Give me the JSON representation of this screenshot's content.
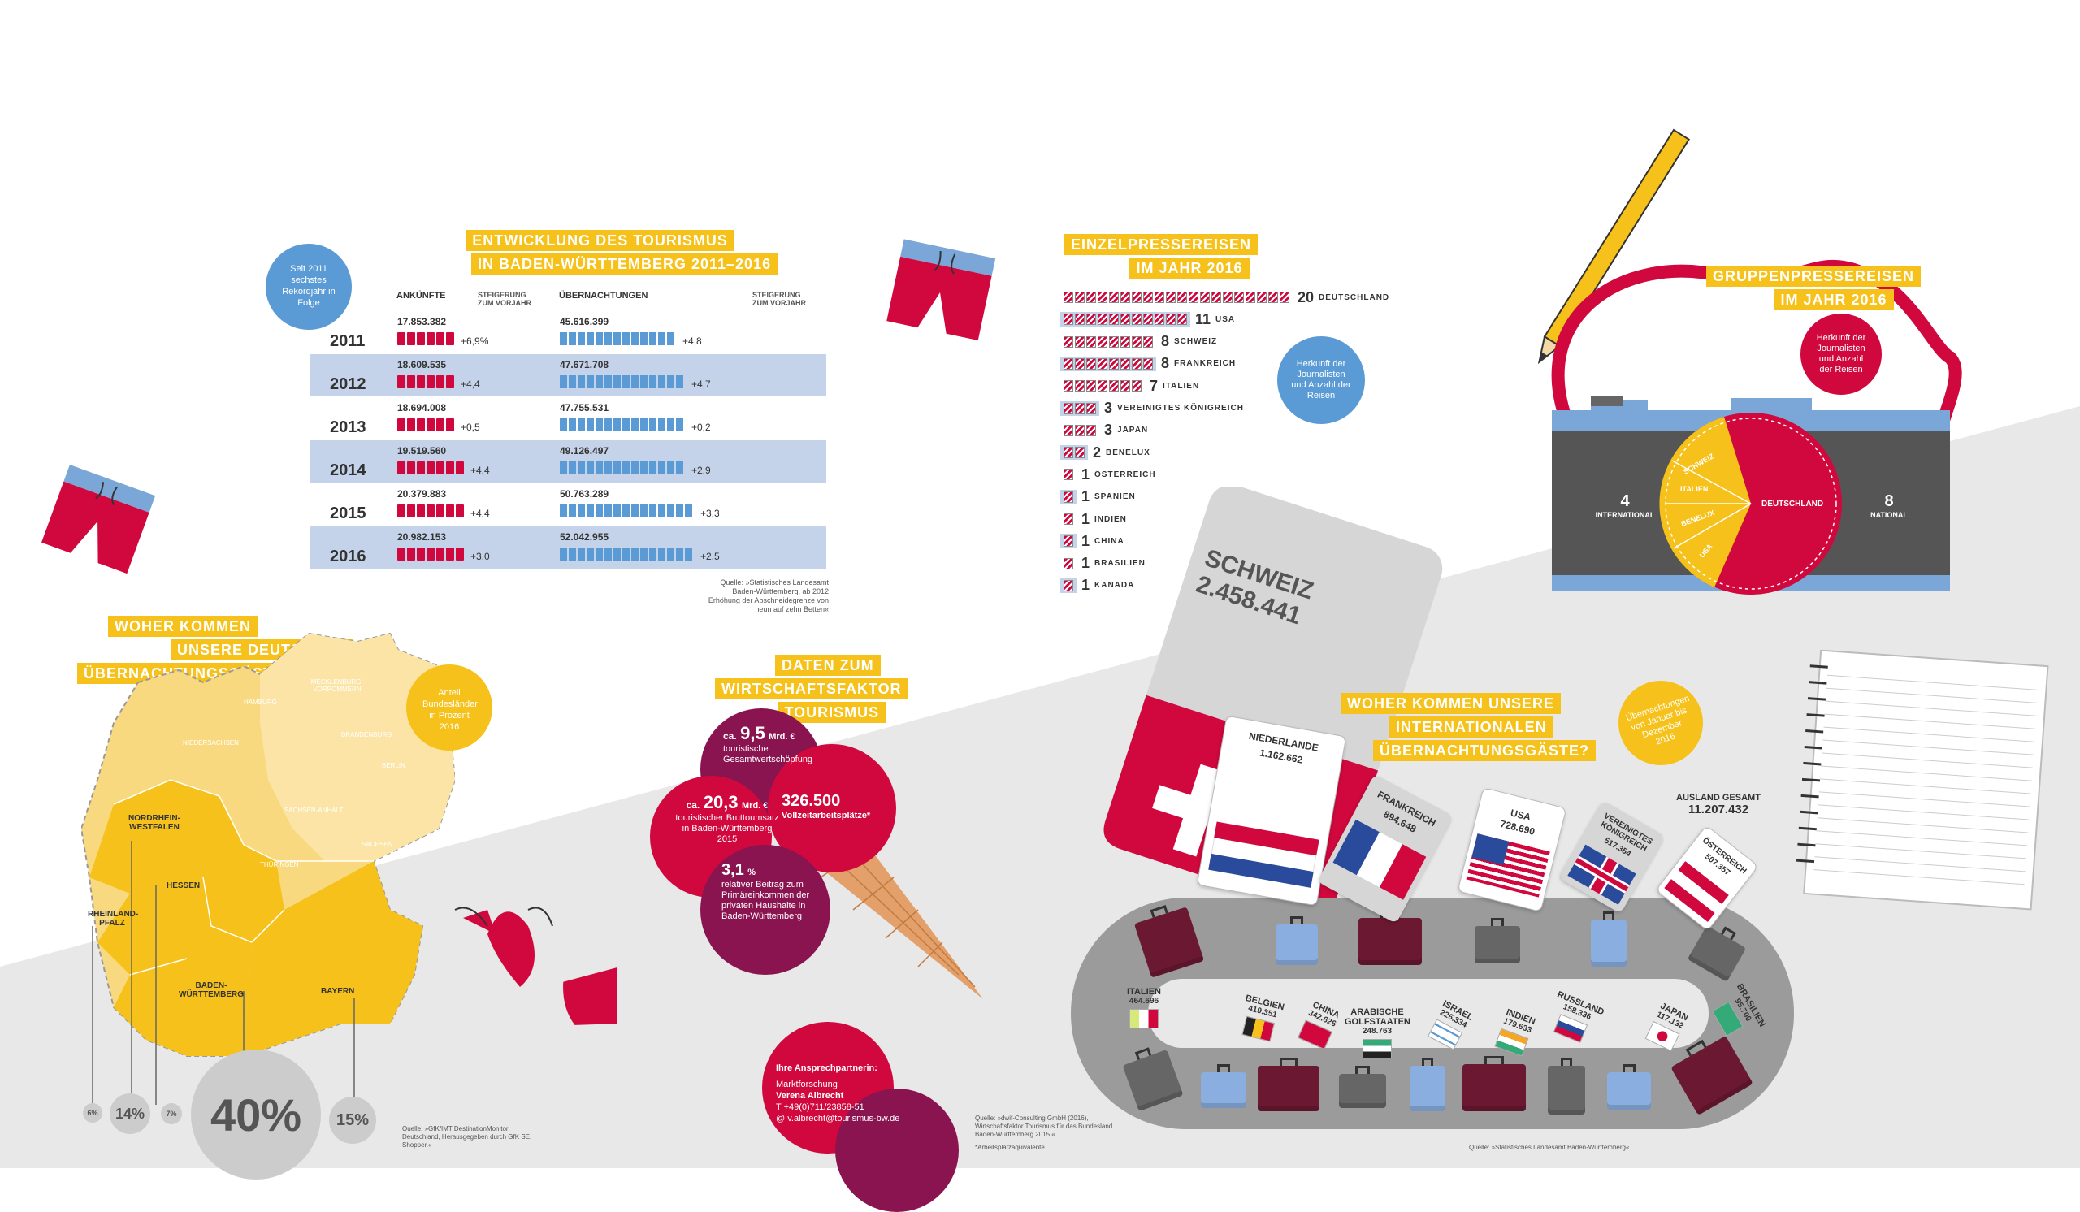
{
  "tourism": {
    "title1": "ENTWICKLUNG DES TOURISMUS",
    "title2": "IN BADEN-WÜRTTEMBERG 2011–2016",
    "record_badge": "Seit 2011 sechstes Rekordjahr in Folge",
    "col_arrivals": "ANKÜNFTE",
    "col_increase": "STEIGERUNG ZUM VORJAHR",
    "col_overnight": "ÜBERNACHTUNGEN",
    "col_increase2": "STEIGERUNG ZUM VORJAHR",
    "rows": [
      {
        "year": "2011",
        "arrivals": "17.853.382",
        "a_pct": "+6,9%",
        "nights": "45.616.399",
        "n_pct": "+4,8",
        "a_val": 17853382,
        "n_val": 45616399
      },
      {
        "year": "2012",
        "arrivals": "18.609.535",
        "a_pct": "+4,4",
        "nights": "47.671.708",
        "n_pct": "+4,7",
        "a_val": 18609535,
        "n_val": 47671708
      },
      {
        "year": "2013",
        "arrivals": "18.694.008",
        "a_pct": "+0,5",
        "nights": "47.755.531",
        "n_pct": "+0,2",
        "a_val": 18694008,
        "n_val": 47755531
      },
      {
        "year": "2014",
        "arrivals": "19.519.560",
        "a_pct": "+4,4",
        "nights": "49.126.497",
        "n_pct": "+2,9",
        "a_val": 19519560,
        "n_val": 49126497
      },
      {
        "year": "2015",
        "arrivals": "20.379.883",
        "a_pct": "+4,4",
        "nights": "50.763.289",
        "n_pct": "+3,3",
        "a_val": 20379883,
        "n_val": 50763289
      },
      {
        "year": "2016",
        "arrivals": "20.982.153",
        "a_pct": "+3,0",
        "nights": "52.042.955",
        "n_pct": "+2,5",
        "a_val": 20982153,
        "n_val": 52042955
      }
    ],
    "source": "Quelle: »Statistisches Landesamt Baden-Württemberg, ab 2012 Erhöhung der Abschneidegrenze von neun auf zehn Betten«"
  },
  "press": {
    "title1": "EINZELPRESSEREISEN",
    "title2": "IM JAHR 2016",
    "origin_badge": "Herkunft der Journalisten und Anzahl der Reisen",
    "countries": [
      {
        "count": 20,
        "label": "20",
        "name": "DEUTSCHLAND"
      },
      {
        "count": 11,
        "label": "11",
        "name": "USA"
      },
      {
        "count": 8,
        "label": "8",
        "name": "SCHWEIZ"
      },
      {
        "count": 8,
        "label": "8",
        "name": "FRANKREICH"
      },
      {
        "count": 7,
        "label": "7",
        "name": "ITALIEN"
      },
      {
        "count": 3,
        "label": "3",
        "name": "VEREINIGTES KÖNIGREICH"
      },
      {
        "count": 3,
        "label": "3",
        "name": "JAPAN"
      },
      {
        "count": 2,
        "label": "2",
        "name": "BENELUX"
      },
      {
        "count": 1,
        "label": "1",
        "name": "ÖSTERREICH"
      },
      {
        "count": 1,
        "label": "1",
        "name": "SPANIEN"
      },
      {
        "count": 1,
        "label": "1",
        "name": "INDIEN"
      },
      {
        "count": 1,
        "label": "1",
        "name": "CHINA"
      },
      {
        "count": 1,
        "label": "1",
        "name": "BRASILIEN"
      },
      {
        "count": 1,
        "label": "1",
        "name": "KANADA"
      }
    ]
  },
  "group": {
    "title1": "GRUPPENPRESSEREISEN",
    "title2": "IM JAHR 2016",
    "origin_badge": "Herkunft der Journalisten und Anzahl der Reisen",
    "intl_num": "4",
    "intl_label": "INTERNATIONAL",
    "nat_num": "8",
    "nat_label": "NATIONAL",
    "pie_de": "DEUTSCHLAND",
    "pie_labels": [
      "SCHWEIZ",
      "ITALIEN",
      "BENELUX",
      "USA"
    ]
  },
  "germany": {
    "title1": "WOHER KOMMEN",
    "title2": "UNSERE DEUTSCHEN",
    "title3": "ÜBERNACHTUNGSGÄSTE?",
    "share_badge": "Anteil Bundesländer in Prozent 2016",
    "states": [
      "NORDRHEIN-WESTFALEN",
      "HESSEN",
      "RHEINLAND-PFALZ",
      "BADEN-WÜRTTEMBERG",
      "BAYERN"
    ],
    "faint_states": [
      "HAMBURG",
      "MECKLENBURG-VORPOMMERN",
      "NIEDERSACHSEN",
      "BRANDENBURG",
      "BERLIN",
      "SACHSEN-ANHALT",
      "THÜRINGEN",
      "SACHSEN"
    ],
    "percents": [
      "6%",
      "14%",
      "7%",
      "40%",
      "15%"
    ],
    "source": "Quelle: »GfK/IMT DestinationMonitor Deutschland, Herausgegeben durch GfK SE, Shopper.«"
  },
  "economy": {
    "title1": "DATEN ZUM",
    "title2": "WIRTSCHAFTSFAKTOR",
    "title3": "TOURISMUS",
    "c1_prefix": "ca.",
    "c1_value": "9,5",
    "c1_unit": "Mrd. €",
    "c1_text": "touristische Gesamtwertschöpfung",
    "c2_prefix": "ca.",
    "c2_value": "20,3",
    "c2_unit": "Mrd. €",
    "c2_text": "touristischer Bruttoumsatz in Baden-Württemberg 2015",
    "c3_value": "326.500",
    "c3_text": "Vollzeitarbeitsplätze*",
    "c4_value": "3,1",
    "c4_unit": "%",
    "c4_text": "relativer Beitrag zum Primäreinkommen der privaten Haushalte in Baden-Württemberg",
    "contact_title": "Ihre Ansprechpartnerin:",
    "contact_dept": "Marktforschung",
    "contact_name": "Verena Albrecht",
    "contact_phone": "T +49(0)711/23858-51",
    "contact_mail": "@ v.albrecht@tourismus-bw.de",
    "source": "Quelle: »dwif-Consulting GmbH (2016), Wirtschaftsfaktor Tourismus für das Bundesland Baden-Württemberg 2015.«",
    "footnote": "*Arbeitsplatzäquivalente"
  },
  "international": {
    "title1": "WOHER KOMMEN UNSERE",
    "title2": "INTERNATIONALEN",
    "title3": "ÜBERNACHTUNGSGÄSTE?",
    "period_badge": "Übernachtungen von Januar bis Dezember 2016",
    "total_label": "AUSLAND GESAMT",
    "total_value": "11.207.432",
    "big_name": "SCHWEIZ",
    "big_value": "2.458.441",
    "tags": [
      {
        "name": "NIEDERLANDE",
        "value": "1.162.662"
      },
      {
        "name": "FRANKREICH",
        "value": "894.648"
      },
      {
        "name": "USA",
        "value": "728.690"
      },
      {
        "name": "VEREINIGTES KÖNIGREICH",
        "value": "517.354"
      },
      {
        "name": "ÖSTERREICH",
        "value": "507.357"
      }
    ],
    "small_tags": [
      {
        "name": "ITALIEN",
        "value": "464.696"
      },
      {
        "name": "BELGIEN",
        "value": "419.351"
      },
      {
        "name": "CHINA",
        "value": "342.626"
      },
      {
        "name": "ARABISCHE GOLFSTAATEN",
        "value": "248.763"
      },
      {
        "name": "ISRAEL",
        "value": "226.334"
      },
      {
        "name": "INDIEN",
        "value": "179.633"
      },
      {
        "name": "RUSSLAND",
        "value": "158.336"
      },
      {
        "name": "JAPAN",
        "value": "117.132"
      },
      {
        "name": "BRASILIEN",
        "value": "95.700"
      }
    ],
    "source": "Quelle: »Statistisches Landesamt Baden-Württemberg«"
  },
  "colors": {
    "yellow": "#f5c11a",
    "red": "#d0083d",
    "blue": "#5b9bd5",
    "lightblue": "#c5d3ea",
    "grey": "#e6e6e6",
    "wine": "#8a1450"
  }
}
